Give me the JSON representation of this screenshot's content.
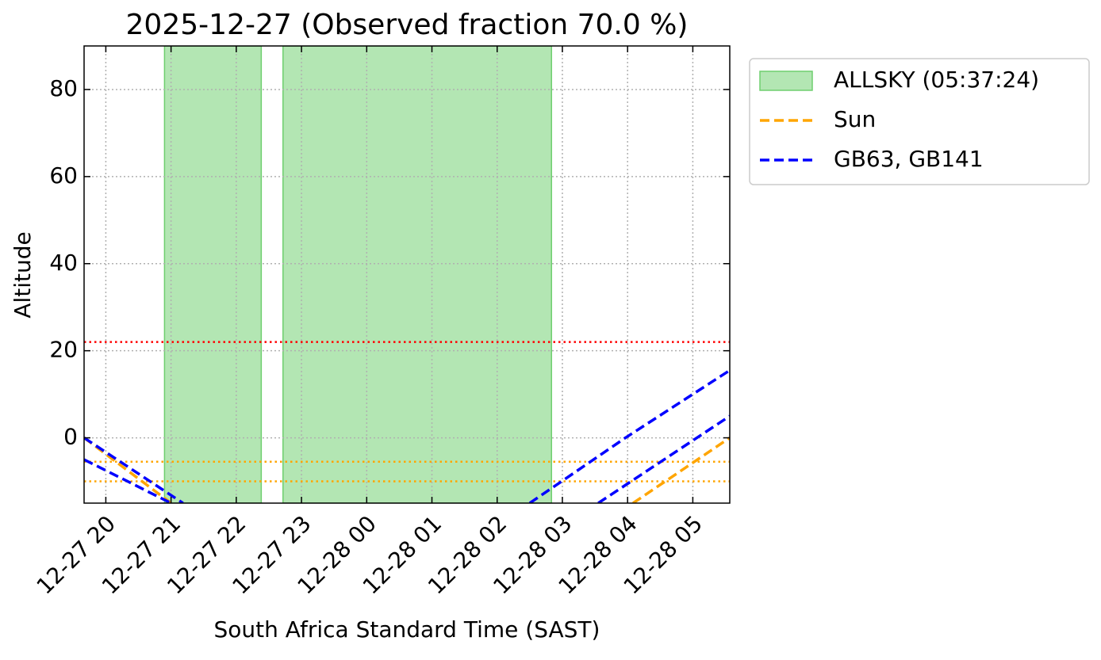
{
  "chart_data": {
    "type": "line",
    "title": "2025-12-27 (Observed fraction 70.0 %)",
    "x_label": "South Africa Standard Time (SAST)",
    "y_label": "Altitude",
    "xlim": [
      "2025-12-27T19:40",
      "2025-12-28T05:34"
    ],
    "ylim": [
      -15,
      90
    ],
    "yticks": [
      0,
      20,
      40,
      60,
      80
    ],
    "xticks": [
      {
        "value": "2025-12-27T20:00",
        "label": "12-27 20"
      },
      {
        "value": "2025-12-27T21:00",
        "label": "12-27 21"
      },
      {
        "value": "2025-12-27T22:00",
        "label": "12-27 22"
      },
      {
        "value": "2025-12-27T23:00",
        "label": "12-27 23"
      },
      {
        "value": "2025-12-28T00:00",
        "label": "12-28 00"
      },
      {
        "value": "2025-12-28T01:00",
        "label": "12-28 01"
      },
      {
        "value": "2025-12-28T02:00",
        "label": "12-28 02"
      },
      {
        "value": "2025-12-28T03:00",
        "label": "12-28 03"
      },
      {
        "value": "2025-12-28T04:00",
        "label": "12-28 04"
      },
      {
        "value": "2025-12-28T05:00",
        "label": "12-28 05"
      }
    ],
    "grid": true,
    "legend": "outside-upper-right",
    "spans": {
      "name": "ALLSKY (05:37:24)",
      "color": "#b3e6b3",
      "ranges": [
        [
          "2025-12-27T20:54",
          "2025-12-27T22:23"
        ],
        [
          "2025-12-27T22:43",
          "2025-12-28T02:50"
        ]
      ]
    },
    "series": [
      {
        "name": "Sun",
        "color": "orange",
        "x": [
          "2025-12-27T19:40",
          "2025-12-27T21:00",
          "2025-12-28T00:00",
          "2025-12-28T04:05",
          "2025-12-28T05:34"
        ],
        "values": [
          0,
          -15,
          null,
          -15,
          0
        ]
      },
      {
        "name": "GB63, GB141",
        "color": "blue",
        "x": [
          "2025-12-27T19:40",
          "2025-12-27T21:11",
          "2025-12-28T00:00",
          "2025-12-28T02:30",
          "2025-12-28T03:58",
          "2025-12-28T05:34"
        ],
        "values": [
          0,
          -15,
          null,
          -15,
          0,
          15.5
        ]
      },
      {
        "name": "GB63, GB141",
        "color": "blue",
        "x": [
          "2025-12-27T19:40",
          "2025-12-27T21:00",
          "2025-12-28T00:00",
          "2025-12-28T03:33",
          "2025-12-28T05:34"
        ],
        "values": [
          -5,
          -15,
          null,
          -15,
          5
        ]
      }
    ],
    "hlines": [
      {
        "value": 22,
        "color": "red"
      },
      {
        "value": -5.5,
        "color": "orange"
      },
      {
        "value": -10,
        "color": "orange"
      }
    ]
  }
}
